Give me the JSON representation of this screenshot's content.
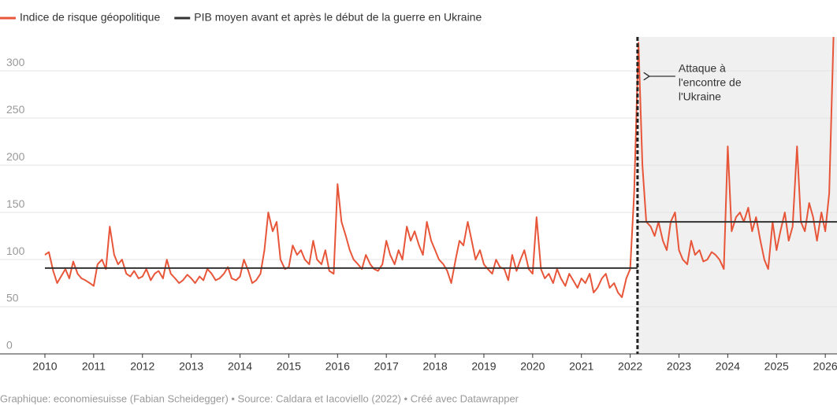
{
  "chart_data": {
    "type": "line",
    "series": [
      {
        "name": "Indice de risque géopolitique",
        "color": "#e8563a",
        "x": [
          2010,
          2010.08,
          2010.17,
          2010.25,
          2010.33,
          2010.42,
          2010.5,
          2010.58,
          2010.67,
          2010.75,
          2010.83,
          2010.92,
          2011,
          2011.08,
          2011.17,
          2011.25,
          2011.33,
          2011.42,
          2011.5,
          2011.58,
          2011.67,
          2011.75,
          2011.83,
          2011.92,
          2012,
          2012.08,
          2012.17,
          2012.25,
          2012.33,
          2012.42,
          2012.5,
          2012.58,
          2012.67,
          2012.75,
          2012.83,
          2012.92,
          2013,
          2013.08,
          2013.17,
          2013.25,
          2013.33,
          2013.42,
          2013.5,
          2013.58,
          2013.67,
          2013.75,
          2013.83,
          2013.92,
          2014,
          2014.08,
          2014.17,
          2014.25,
          2014.33,
          2014.42,
          2014.5,
          2014.58,
          2014.67,
          2014.75,
          2014.83,
          2014.92,
          2015,
          2015.08,
          2015.17,
          2015.25,
          2015.33,
          2015.42,
          2015.5,
          2015.58,
          2015.67,
          2015.75,
          2015.83,
          2015.92,
          2016,
          2016.08,
          2016.17,
          2016.25,
          2016.33,
          2016.42,
          2016.5,
          2016.58,
          2016.67,
          2016.75,
          2016.83,
          2016.92,
          2017,
          2017.08,
          2017.17,
          2017.25,
          2017.33,
          2017.42,
          2017.5,
          2017.58,
          2017.67,
          2017.75,
          2017.83,
          2017.92,
          2018,
          2018.08,
          2018.17,
          2018.25,
          2018.33,
          2018.42,
          2018.5,
          2018.58,
          2018.67,
          2018.75,
          2018.83,
          2018.92,
          2019,
          2019.08,
          2019.17,
          2019.25,
          2019.33,
          2019.42,
          2019.5,
          2019.58,
          2019.67,
          2019.75,
          2019.83,
          2019.92,
          2020,
          2020.08,
          2020.17,
          2020.25,
          2020.33,
          2020.42,
          2020.5,
          2020.58,
          2020.67,
          2020.75,
          2020.83,
          2020.92,
          2021,
          2021.08,
          2021.17,
          2021.25,
          2021.33,
          2021.42,
          2021.5,
          2021.58,
          2021.67,
          2021.75,
          2021.83,
          2021.92,
          2022,
          2022.08,
          2022.17,
          2022.25,
          2022.33,
          2022.42,
          2022.5,
          2022.58,
          2022.67,
          2022.75,
          2022.83,
          2022.92,
          2023,
          2023.08,
          2023.17,
          2023.25,
          2023.33,
          2023.42,
          2023.5,
          2023.58,
          2023.67,
          2023.75,
          2023.83,
          2023.92,
          2024,
          2024.08,
          2024.17,
          2024.25,
          2024.33,
          2024.42,
          2024.5,
          2024.58,
          2024.67,
          2024.75,
          2024.83,
          2024.92,
          2025,
          2025.08,
          2025.17,
          2025.25,
          2025.33,
          2025.42,
          2025.5,
          2025.58,
          2025.67,
          2025.75,
          2025.83,
          2025.92,
          2026,
          2026.08,
          2026.17
        ],
        "values": [
          105,
          108,
          88,
          75,
          82,
          90,
          80,
          98,
          85,
          80,
          78,
          75,
          72,
          95,
          100,
          90,
          135,
          105,
          95,
          100,
          85,
          82,
          88,
          80,
          82,
          90,
          78,
          85,
          88,
          80,
          100,
          85,
          80,
          75,
          78,
          84,
          80,
          75,
          82,
          78,
          90,
          85,
          78,
          80,
          85,
          92,
          80,
          78,
          82,
          100,
          88,
          75,
          78,
          85,
          110,
          150,
          130,
          140,
          100,
          90,
          92,
          115,
          105,
          110,
          100,
          95,
          120,
          100,
          95,
          110,
          88,
          85,
          180,
          140,
          125,
          110,
          100,
          95,
          90,
          105,
          95,
          90,
          88,
          95,
          120,
          105,
          95,
          110,
          100,
          135,
          120,
          130,
          115,
          105,
          140,
          120,
          110,
          100,
          95,
          88,
          75,
          100,
          120,
          115,
          140,
          120,
          100,
          110,
          95,
          90,
          85,
          100,
          92,
          90,
          78,
          105,
          88,
          100,
          110,
          90,
          85,
          145,
          90,
          80,
          85,
          75,
          90,
          80,
          72,
          85,
          78,
          70,
          80,
          75,
          85,
          65,
          70,
          80,
          85,
          70,
          75,
          65,
          60,
          80,
          90,
          170,
          330,
          200,
          140,
          135,
          125,
          140,
          120,
          110,
          140,
          150,
          110,
          100,
          95,
          120,
          105,
          110,
          98,
          100,
          108,
          105,
          100,
          90,
          220,
          130,
          145,
          150,
          140,
          155,
          130,
          145,
          120,
          100,
          90,
          140,
          110,
          130,
          150,
          120,
          135,
          220,
          140,
          130,
          160,
          145,
          120,
          150,
          130,
          170,
          340
        ]
      },
      {
        "name": "PIB moyen avant et après le début de la guerre en Ukraine",
        "color": "#333333",
        "x": [
          2010,
          2022.15,
          2022.16,
          2022.16,
          2026.24
        ],
        "values": [
          91,
          91,
          null,
          140,
          140
        ]
      }
    ],
    "event_x": 2022.15,
    "annotation": [
      "Attaque à",
      "l'encontre de",
      "l'Ukraine"
    ],
    "xlim": [
      2010,
      2026.24
    ],
    "xticks": [
      2010,
      2011,
      2012,
      2013,
      2014,
      2015,
      2016,
      2017,
      2018,
      2019,
      2020,
      2021,
      2022,
      2023,
      2024,
      2025,
      2026
    ],
    "ylim": [
      0,
      336
    ],
    "yticks": [
      0,
      50,
      100,
      150,
      200,
      250,
      300
    ],
    "grid": true,
    "source": "Graphique: economiesuisse (Fabian Scheidegger) • Source: Caldara et Iacoviello (2022) • Créé avec Datawrapper"
  }
}
